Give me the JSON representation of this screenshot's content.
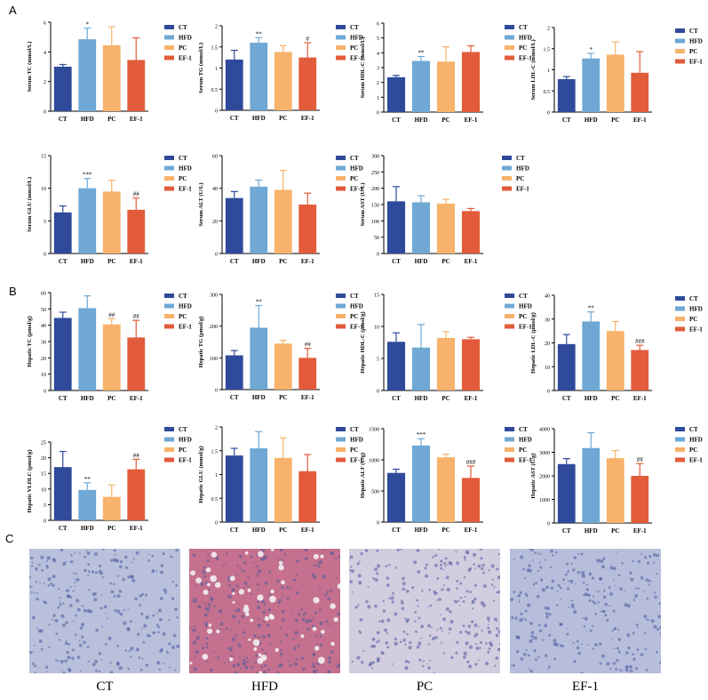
{
  "panel_labels": {
    "a": "A",
    "b": "B",
    "c": "C"
  },
  "colors": {
    "CT": "#2f4a9a",
    "HFD": "#6fa8d4",
    "PC": "#f7b26b",
    "EF-1": "#e25b3a"
  },
  "histology": {
    "captions": [
      "CT",
      "HFD",
      "PC",
      "EF-1"
    ],
    "stains": [
      "#b9c0dc",
      "#c4708e",
      "#d3cde0",
      "#b7bedc"
    ]
  },
  "chart_data": [
    {
      "type": "bar",
      "panel": "A",
      "ylabel": "Serum TC (mmol/L)",
      "categories": [
        "CT",
        "HFD",
        "PC",
        "EF-1"
      ],
      "values": [
        3.0,
        4.85,
        4.45,
        3.45
      ],
      "errors": [
        0.15,
        0.75,
        1.25,
        1.5
      ],
      "annotations": [
        "",
        "*",
        "",
        ""
      ],
      "ylim": [
        0,
        6
      ],
      "yticks": [
        0,
        2,
        4,
        6
      ],
      "legend": [
        "CT",
        "HFD",
        "PC",
        "EF-1"
      ]
    },
    {
      "type": "bar",
      "panel": "A",
      "ylabel": "Serum TG (mmol/L)",
      "categories": [
        "CT",
        "HFD",
        "PC",
        "EF-1"
      ],
      "values": [
        1.2,
        1.6,
        1.38,
        1.25
      ],
      "errors": [
        0.22,
        0.12,
        0.15,
        0.35
      ],
      "annotations": [
        "",
        "**",
        "",
        "#"
      ],
      "ylim": [
        0,
        2.0
      ],
      "yticks": [
        0.0,
        0.5,
        1.0,
        1.5,
        2.0
      ],
      "legend": [
        "CT",
        "HFD",
        "PC",
        "EF-1"
      ]
    },
    {
      "type": "bar",
      "panel": "A",
      "ylabel": "Serum HDL-C (mmol/L)",
      "categories": [
        "CT",
        "HFD",
        "PC",
        "EF-1"
      ],
      "values": [
        2.35,
        3.45,
        3.4,
        4.05
      ],
      "errors": [
        0.12,
        0.3,
        1.0,
        0.42
      ],
      "annotations": [
        "",
        "**",
        "",
        ""
      ],
      "ylim": [
        0,
        6
      ],
      "yticks": [
        0,
        1,
        2,
        3,
        4,
        5,
        6
      ],
      "legend": [
        "CT",
        "HFD",
        "PC",
        "EF-1"
      ]
    },
    {
      "type": "bar",
      "panel": "A",
      "ylabel": "Serum LDL-C (mmol/L)",
      "categories": [
        "CT",
        "HFD",
        "PC",
        "EF-1"
      ],
      "values": [
        0.78,
        1.27,
        1.36,
        0.93
      ],
      "errors": [
        0.06,
        0.12,
        0.3,
        0.5
      ],
      "annotations": [
        "",
        "*",
        "",
        ""
      ],
      "ylim": [
        0,
        2.0
      ],
      "yticks": [
        0.0,
        0.5,
        1.0,
        1.5,
        2.0
      ],
      "legend": [
        "CT",
        "HFD",
        "PC",
        "EF-1"
      ]
    },
    {
      "type": "bar",
      "panel": "A",
      "ylabel": "Serum GLU (mmol/L)",
      "categories": [
        "CT",
        "HFD",
        "PC",
        "EF-1"
      ],
      "values": [
        6.3,
        10.0,
        9.5,
        6.7
      ],
      "errors": [
        1.0,
        1.5,
        1.7,
        1.8
      ],
      "annotations": [
        "",
        "***",
        "",
        "##"
      ],
      "ylim": [
        0,
        15
      ],
      "yticks": [
        0,
        5,
        10,
        15
      ],
      "legend": [
        "CT",
        "HFD",
        "PC",
        "EF-1"
      ]
    },
    {
      "type": "bar",
      "panel": "A",
      "ylabel": "Serum ALT (U/L)",
      "categories": [
        "CT",
        "HFD",
        "PC",
        "EF-1"
      ],
      "values": [
        34,
        41,
        39,
        30
      ],
      "errors": [
        4,
        4,
        12,
        7
      ],
      "annotations": [
        "",
        "",
        "",
        ""
      ],
      "ylim": [
        0,
        60
      ],
      "yticks": [
        0,
        20,
        40,
        60
      ],
      "legend": [
        "CT",
        "HFD",
        "PC",
        "EF-1"
      ]
    },
    {
      "type": "bar",
      "panel": "A",
      "ylabel": "Serum AST (U/L)",
      "categories": [
        "CT",
        "HFD",
        "PC",
        "EF-1"
      ],
      "values": [
        160,
        157,
        153,
        130
      ],
      "errors": [
        45,
        20,
        13,
        8
      ],
      "annotations": [
        "",
        "",
        "",
        ""
      ],
      "ylim": [
        0,
        300
      ],
      "yticks": [
        0,
        50,
        100,
        150,
        200,
        250,
        300
      ],
      "legend": [
        "CT",
        "HFD",
        "PC",
        "EF-1"
      ]
    },
    {
      "type": "bar",
      "panel": "B",
      "ylabel": "Hepatic TC (μmol/g)",
      "categories": [
        "CT",
        "HFD",
        "PC",
        "EF-1"
      ],
      "values": [
        44.5,
        50.5,
        40.5,
        32.5
      ],
      "errors": [
        3.5,
        7.5,
        3.5,
        10.5
      ],
      "annotations": [
        "",
        "",
        "##",
        "##"
      ],
      "ylim": [
        0,
        60
      ],
      "yticks": [
        0,
        10,
        20,
        30,
        40,
        50,
        60
      ],
      "legend": [
        "CT",
        "HFD",
        "PC",
        "EF-1"
      ]
    },
    {
      "type": "bar",
      "panel": "B",
      "ylabel": "Hepatic TG (μmol/g)",
      "categories": [
        "CT",
        "HFD",
        "PC",
        "EF-1"
      ],
      "values": [
        108,
        195,
        145,
        100
      ],
      "errors": [
        15,
        70,
        10,
        30
      ],
      "annotations": [
        "",
        "**",
        "",
        "##"
      ],
      "ylim": [
        0,
        300
      ],
      "yticks": [
        0,
        100,
        200,
        300
      ],
      "legend": [
        "CT",
        "HFD",
        "PC",
        "EF-1"
      ]
    },
    {
      "type": "bar",
      "panel": "B",
      "ylabel": "Hepatic HDL-C (μmol/g)",
      "categories": [
        "CT",
        "HFD",
        "PC",
        "EF-1"
      ],
      "values": [
        7.6,
        6.7,
        8.2,
        8.0
      ],
      "errors": [
        1.4,
        3.6,
        1.0,
        0.3
      ],
      "annotations": [
        "",
        "",
        "",
        ""
      ],
      "ylim": [
        0,
        15
      ],
      "yticks": [
        0,
        5,
        10,
        15
      ],
      "legend": [
        "CT",
        "HFD",
        "PC",
        "EF-1"
      ]
    },
    {
      "type": "bar",
      "panel": "B",
      "ylabel": "Hepatic LDL-C (μmol/g)",
      "categories": [
        "CT",
        "HFD",
        "PC",
        "EF-1"
      ],
      "values": [
        19.5,
        29,
        25,
        17
      ],
      "errors": [
        4,
        4,
        4,
        2
      ],
      "annotations": [
        "",
        "**",
        "",
        "###"
      ],
      "ylim": [
        0,
        40
      ],
      "yticks": [
        0,
        10,
        20,
        30,
        40
      ],
      "legend": [
        "CT",
        "HFD",
        "PC",
        "EF-1"
      ]
    },
    {
      "type": "bar",
      "panel": "B",
      "ylabel": "Hepatic VLDLC (μmol/g)",
      "categories": [
        "CT",
        "HFD",
        "PC",
        "EF-1"
      ],
      "values": [
        17,
        9.7,
        7.5,
        16.3
      ],
      "errors": [
        5,
        2.3,
        3.8,
        3.2
      ],
      "annotations": [
        "",
        "**",
        "",
        "##"
      ],
      "ylim": [
        0,
        25
      ],
      "yticks": [
        0,
        5,
        10,
        15,
        20,
        25
      ],
      "legend": [
        "CT",
        "HFD",
        "PC",
        "EF-1"
      ]
    },
    {
      "type": "bar",
      "panel": "B",
      "ylabel": "Hepatic GLU (mmol/g)",
      "categories": [
        "CT",
        "HFD",
        "PC",
        "EF-1"
      ],
      "values": [
        1.4,
        1.55,
        1.35,
        1.07
      ],
      "errors": [
        0.15,
        0.35,
        0.42,
        0.35
      ],
      "annotations": [
        "",
        "",
        "",
        ""
      ],
      "ylim": [
        0,
        2.0
      ],
      "yticks": [
        0.0,
        0.5,
        1.0,
        1.5,
        2.0
      ],
      "legend": [
        "CT",
        "HFD",
        "PC",
        "EF-1"
      ]
    },
    {
      "type": "bar",
      "panel": "B",
      "ylabel": "Hepatic ALT (U/g)",
      "categories": [
        "CT",
        "HFD",
        "PC",
        "EF-1"
      ],
      "values": [
        790,
        1230,
        1040,
        710
      ],
      "errors": [
        60,
        110,
        50,
        190
      ],
      "annotations": [
        "",
        "***",
        "",
        "###"
      ],
      "ylim": [
        0,
        1500
      ],
      "yticks": [
        0,
        500,
        1000,
        1500
      ],
      "legend": [
        "CT",
        "HFD",
        "PC",
        "EF-1"
      ]
    },
    {
      "type": "bar",
      "panel": "B",
      "ylabel": "Hepatic AST (U/g)",
      "categories": [
        "CT",
        "HFD",
        "PC",
        "EF-1"
      ],
      "values": [
        2500,
        3180,
        2750,
        2000
      ],
      "errors": [
        230,
        650,
        320,
        520
      ],
      "annotations": [
        "",
        "",
        "",
        "##"
      ],
      "ylim": [
        0,
        4000
      ],
      "yticks": [
        0,
        1000,
        2000,
        3000,
        4000
      ],
      "legend": [
        "CT",
        "HFD",
        "PC",
        "EF-1"
      ]
    }
  ]
}
